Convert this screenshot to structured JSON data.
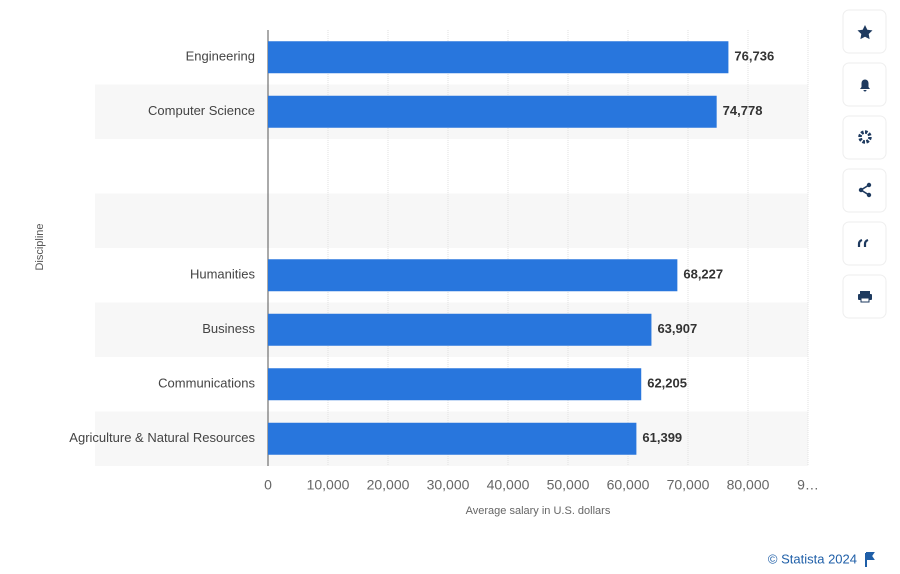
{
  "chart_data": {
    "type": "bar",
    "orientation": "horizontal",
    "categories": [
      "Engineering",
      "Computer Science",
      null,
      null,
      "Humanities",
      "Business",
      "Communications",
      "Agriculture & Natural Resources"
    ],
    "values": [
      76736,
      74778,
      null,
      null,
      68227,
      63907,
      62205,
      61399
    ],
    "value_labels": [
      "76,736",
      "74,778",
      null,
      null,
      "68,227",
      "63,907",
      "62,205",
      "61,399"
    ],
    "color": "#2876dd",
    "xlim": [
      0,
      90000
    ],
    "xticks": [
      0,
      {
        "value": 10000,
        "label": "10,000"
      },
      {
        "value": 20000,
        "label": "20,000"
      },
      {
        "value": 30000,
        "label": "30,000"
      },
      {
        "value": 40000,
        "label": "40,000"
      },
      {
        "value": 50000,
        "label": "50,000"
      },
      {
        "value": 60000,
        "label": "60,000"
      },
      {
        "value": 70000,
        "label": "70,000"
      },
      {
        "value": 80000,
        "label": "80,000"
      },
      {
        "value": 90000,
        "label": "9…"
      }
    ],
    "grid": true,
    "xlabel": "Average salary in U.S. dollars",
    "ylabel": "Discipline",
    "source": "© Statista 2024"
  }
}
